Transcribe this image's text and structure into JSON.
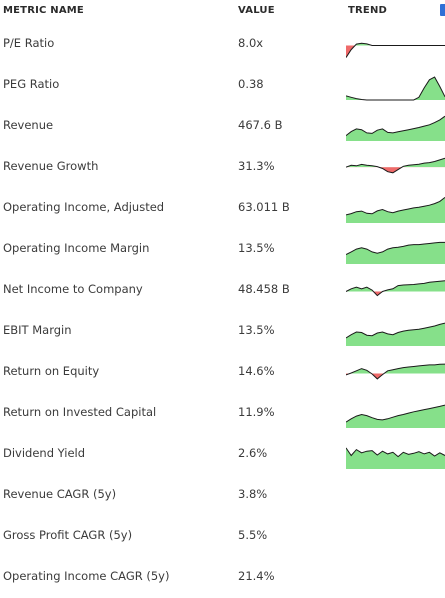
{
  "table": {
    "columns": {
      "metric": "METRIC NAME",
      "value": "VALUE",
      "trend": "TREND"
    },
    "rows": [
      {
        "name": "P/E Ratio",
        "value": "8.0x",
        "trend": [
          0.05,
          0.35,
          0.55,
          0.58,
          0.56,
          0.5,
          0.5,
          0.5,
          0.5,
          0.5,
          0.5,
          0.5,
          0.5,
          0.5,
          0.5,
          0.5,
          0.5,
          0.5,
          0.5,
          0.5
        ],
        "baseline": 0.5
      },
      {
        "name": "PEG Ratio",
        "value": "0.38",
        "trend": [
          0.15,
          0.1,
          0.05,
          0.02,
          0.0,
          0.0,
          0.0,
          0.0,
          0.0,
          0.0,
          0.0,
          0.0,
          0.0,
          0.0,
          0.1,
          0.45,
          0.75,
          0.85,
          0.5,
          0.12
        ],
        "baseline": 0
      },
      {
        "name": "Revenue",
        "value": "467.6 B",
        "trend": [
          0.2,
          0.35,
          0.45,
          0.42,
          0.3,
          0.28,
          0.4,
          0.45,
          0.32,
          0.3,
          0.34,
          0.38,
          0.42,
          0.46,
          0.5,
          0.55,
          0.6,
          0.68,
          0.78,
          0.92
        ],
        "baseline": 0
      },
      {
        "name": "Revenue Growth",
        "value": "31.3%",
        "trend": [
          0.55,
          0.62,
          0.6,
          0.65,
          0.62,
          0.6,
          0.57,
          0.5,
          0.38,
          0.34,
          0.46,
          0.58,
          0.62,
          0.64,
          0.66,
          0.7,
          0.72,
          0.76,
          0.82,
          0.88
        ],
        "baseline": 0.55
      },
      {
        "name": "Operating Income, Adjusted",
        "value": "63.011 B",
        "trend": [
          0.3,
          0.35,
          0.42,
          0.44,
          0.36,
          0.34,
          0.45,
          0.5,
          0.42,
          0.38,
          0.44,
          0.48,
          0.52,
          0.56,
          0.58,
          0.62,
          0.66,
          0.72,
          0.8,
          0.95
        ],
        "baseline": 0
      },
      {
        "name": "Operating Income Margin",
        "value": "13.5%",
        "trend": [
          0.35,
          0.45,
          0.55,
          0.6,
          0.55,
          0.45,
          0.4,
          0.45,
          0.55,
          0.6,
          0.62,
          0.65,
          0.7,
          0.72,
          0.72,
          0.74,
          0.76,
          0.78,
          0.8,
          0.8
        ],
        "baseline": 0
      },
      {
        "name": "Net Income to Company",
        "value": "48.458 B",
        "trend": [
          0.5,
          0.6,
          0.66,
          0.6,
          0.66,
          0.55,
          0.35,
          0.5,
          0.56,
          0.6,
          0.72,
          0.74,
          0.75,
          0.76,
          0.78,
          0.8,
          0.84,
          0.86,
          0.88,
          0.9
        ],
        "baseline": 0.5
      },
      {
        "name": "EBIT Margin",
        "value": "13.5%",
        "trend": [
          0.3,
          0.42,
          0.52,
          0.5,
          0.4,
          0.38,
          0.48,
          0.52,
          0.45,
          0.42,
          0.5,
          0.55,
          0.58,
          0.6,
          0.62,
          0.66,
          0.7,
          0.74,
          0.8,
          0.85
        ],
        "baseline": 0
      },
      {
        "name": "Return on Equity",
        "value": "14.6%",
        "trend": [
          0.45,
          0.52,
          0.6,
          0.68,
          0.62,
          0.48,
          0.3,
          0.46,
          0.6,
          0.64,
          0.68,
          0.72,
          0.74,
          0.76,
          0.78,
          0.8,
          0.82,
          0.82,
          0.84,
          0.85
        ],
        "baseline": 0.5
      },
      {
        "name": "Return on Invested Capital",
        "value": "11.9%",
        "trend": [
          0.22,
          0.34,
          0.44,
          0.5,
          0.46,
          0.38,
          0.32,
          0.3,
          0.34,
          0.4,
          0.46,
          0.5,
          0.55,
          0.6,
          0.64,
          0.68,
          0.72,
          0.76,
          0.8,
          0.85
        ],
        "baseline": 0
      },
      {
        "name": "Dividend Yield",
        "value": "2.6%",
        "trend": [
          0.78,
          0.5,
          0.72,
          0.6,
          0.66,
          0.68,
          0.52,
          0.66,
          0.56,
          0.62,
          0.46,
          0.62,
          0.54,
          0.58,
          0.64,
          0.56,
          0.62,
          0.48,
          0.6,
          0.5
        ],
        "baseline": 0
      },
      {
        "name": "Revenue CAGR (5y)",
        "value": "3.8%",
        "trend": [],
        "baseline": 0
      },
      {
        "name": "Gross Profit CAGR (5y)",
        "value": "5.5%",
        "trend": [],
        "baseline": 0
      },
      {
        "name": "Operating Income CAGR (5y)",
        "value": "21.4%",
        "trend": [],
        "baseline": 0
      }
    ]
  },
  "colors": {
    "positive_fill": "#86e08a",
    "negative_fill": "#ef6a6a",
    "line": "#1a1a1a",
    "header_text": "#2b2b2b",
    "cell_text": "#3b3b3b",
    "edge_accent": "#2f6fd6"
  }
}
